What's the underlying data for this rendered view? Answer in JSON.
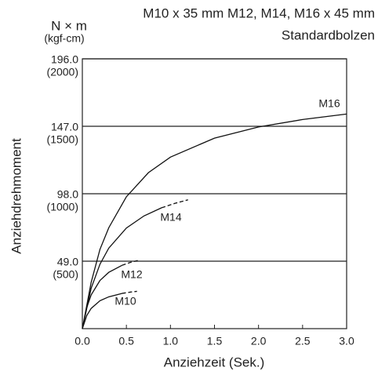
{
  "chart_data": {
    "type": "line",
    "title": "M10 x 35 mm M12, M14, M16 x 45 mm",
    "subtitle": "Standardbolzen",
    "y_unit": "N × m",
    "y2_unit": "(kgf-cm)",
    "ylabel": "Anziehdrehmoment",
    "xlabel": "Anziehzeit (Sek.)",
    "xlim": [
      0,
      3
    ],
    "xticks": [
      {
        "value": 0,
        "label": "0.0"
      },
      {
        "value": 0.5,
        "label": "0.5"
      },
      {
        "value": 1,
        "label": "1.0"
      },
      {
        "value": 1.5,
        "label": "1.5"
      },
      {
        "value": 2,
        "label": "2.0"
      },
      {
        "value": 2.5,
        "label": "2.5"
      },
      {
        "value": 3,
        "label": "3.0"
      }
    ],
    "ylim": [
      0,
      196
    ],
    "yticks": [
      {
        "value": 49,
        "label": "49.0"
      },
      {
        "value": 98,
        "label": "98.0"
      },
      {
        "value": 147,
        "label": "147.0"
      },
      {
        "value": 196,
        "label": "196.0"
      }
    ],
    "y2lim": [
      0,
      2000
    ],
    "y2ticks": [
      {
        "value": 500,
        "label": "(500)"
      },
      {
        "value": 1000,
        "label": "(1000)"
      },
      {
        "value": 1500,
        "label": "(1500)"
      },
      {
        "value": 2000,
        "label": "(2000)"
      }
    ],
    "grid": true,
    "series": [
      {
        "name": "M16",
        "color": "#111111",
        "x": [
          0,
          0.1,
          0.2,
          0.3,
          0.5,
          0.75,
          1.0,
          1.5,
          2.0,
          2.5,
          3.0
        ],
        "values": [
          0,
          33.6,
          57.6,
          73.3,
          95.8,
          113.3,
          124.6,
          138.4,
          146.5,
          151.9,
          155.9
        ],
        "dashed_x": [],
        "dashed_values": []
      },
      {
        "name": "M14",
        "color": "#111111",
        "x": [
          0,
          0.1,
          0.2,
          0.3,
          0.5,
          0.7,
          0.9
        ],
        "values": [
          0,
          29.3,
          46.8,
          58.5,
          73.1,
          81.9,
          87.8
        ],
        "dashed_x": [
          0.9,
          1.05,
          1.2
        ],
        "dashed_values": [
          87.8,
          91,
          93.6
        ]
      },
      {
        "name": "M12",
        "color": "#111111",
        "x": [
          0,
          0.05,
          0.1,
          0.2,
          0.3,
          0.45
        ],
        "values": [
          0,
          15.3,
          24.5,
          35,
          40.9,
          46
        ],
        "dashed_x": [
          0.45,
          0.55,
          0.65
        ],
        "dashed_values": [
          46,
          48.2,
          49.8
        ]
      },
      {
        "name": "M10",
        "color": "#111111",
        "x": [
          0,
          0.05,
          0.1,
          0.2,
          0.3,
          0.45
        ],
        "values": [
          0,
          9.5,
          14.7,
          20.3,
          23.1,
          25.6
        ],
        "dashed_x": [
          0.45,
          0.55,
          0.62
        ],
        "dashed_values": [
          25.6,
          26.6,
          27.1
        ]
      }
    ]
  }
}
